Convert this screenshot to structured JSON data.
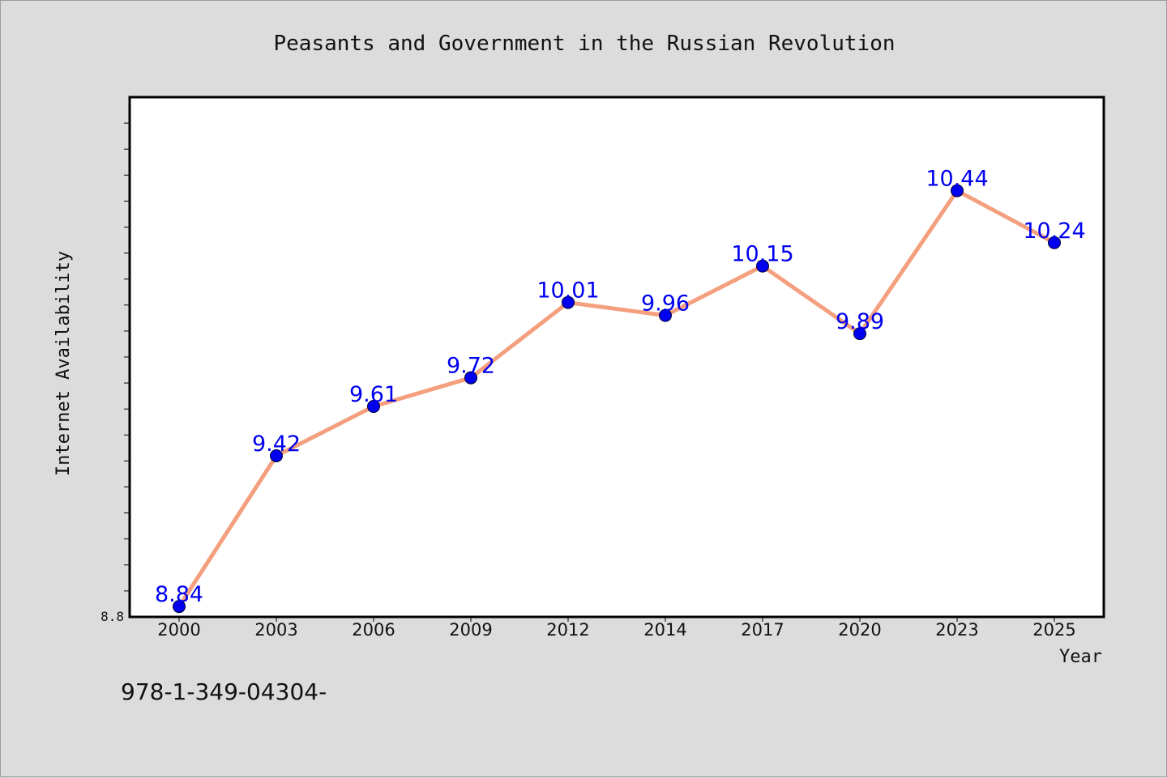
{
  "chart_data": {
    "type": "line",
    "title": "Peasants and Government in the Russian Revolution",
    "xlabel": "Year",
    "ylabel": "Internet Availability",
    "categories": [
      "2000",
      "2003",
      "2006",
      "2009",
      "2012",
      "2014",
      "2017",
      "2020",
      "2023",
      "2025"
    ],
    "series": [
      {
        "values": [
          8.84,
          9.42,
          9.61,
          9.72,
          10.01,
          9.96,
          10.15,
          9.89,
          10.44,
          10.24
        ]
      }
    ],
    "data_labels": [
      "8.84",
      "9.42",
      "9.61",
      "9.72",
      "10.01",
      "9.96",
      "10.15",
      "9.89",
      "10.44",
      "10.24"
    ],
    "ytick_labels": [
      "8.8"
    ],
    "ylim": [
      8.8,
      10.8
    ],
    "grid": false,
    "line_color": "#f4a07e",
    "marker_color": "#0000ee",
    "label_color": "#0000ee"
  },
  "footer": {
    "isbn": "978-1-349-04304-"
  }
}
